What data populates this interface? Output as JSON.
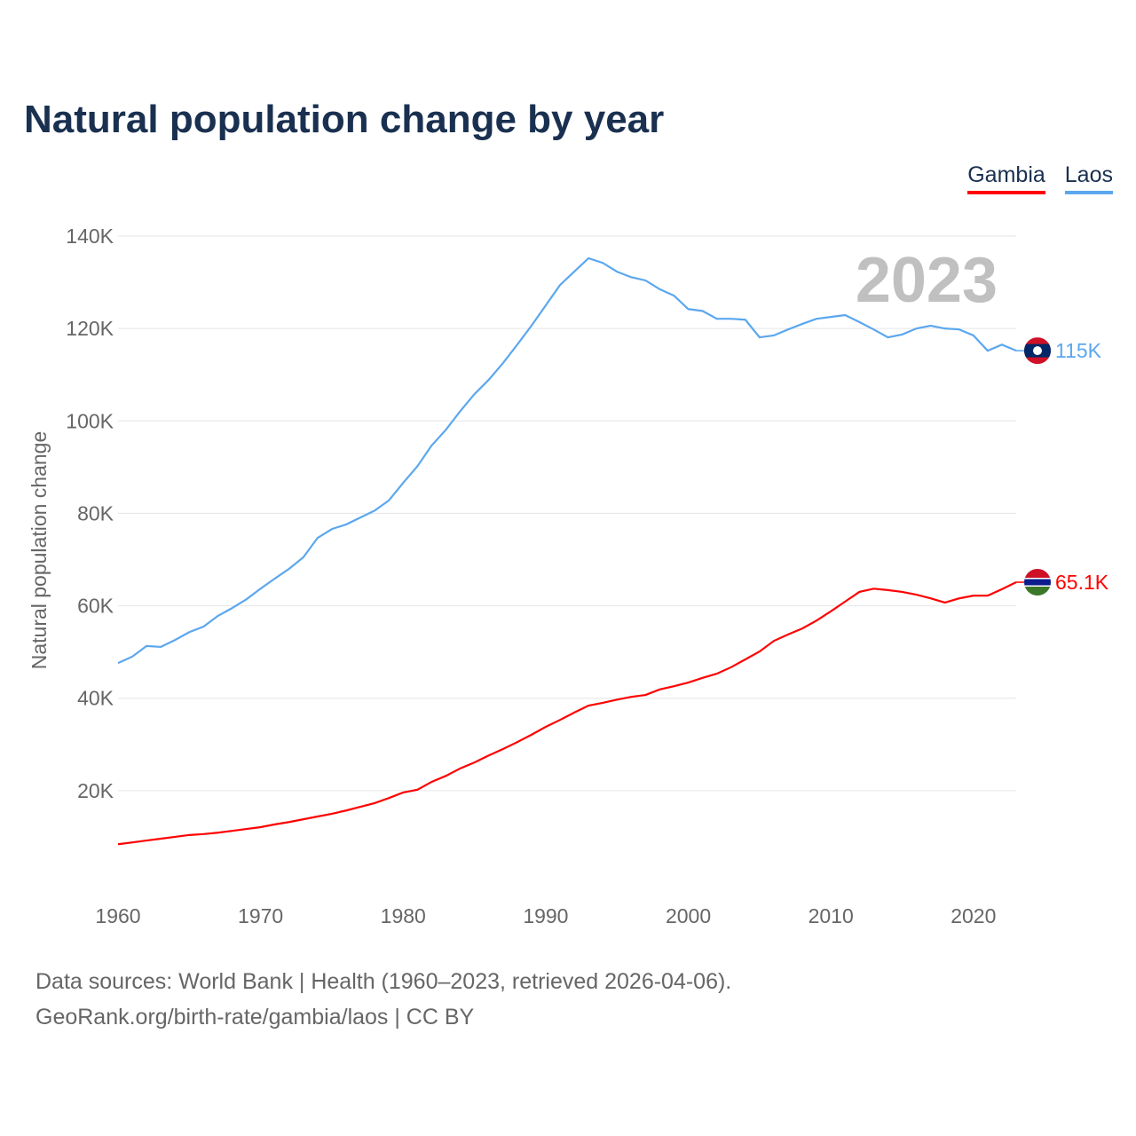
{
  "chart_data": {
    "type": "line",
    "title": "Natural population change by year",
    "ylabel": "Natural population change",
    "xlabel": "",
    "year_label": "2023",
    "xlim": [
      1960,
      2023
    ],
    "ylim": [
      0,
      140000
    ],
    "x_ticks": [
      1960,
      1970,
      1980,
      1990,
      2000,
      2010,
      2020
    ],
    "y_ticks": [
      20000,
      40000,
      60000,
      80000,
      100000,
      120000,
      140000
    ],
    "y_tick_labels": [
      "20K",
      "40K",
      "60K",
      "80K",
      "100K",
      "120K",
      "140K"
    ],
    "x": [
      1960,
      1961,
      1962,
      1963,
      1964,
      1965,
      1966,
      1967,
      1968,
      1969,
      1970,
      1971,
      1972,
      1973,
      1974,
      1975,
      1976,
      1977,
      1978,
      1979,
      1980,
      1981,
      1982,
      1983,
      1984,
      1985,
      1986,
      1987,
      1988,
      1989,
      1990,
      1991,
      1992,
      1993,
      1994,
      1995,
      1996,
      1997,
      1998,
      1999,
      2000,
      2001,
      2002,
      2003,
      2004,
      2005,
      2006,
      2007,
      2008,
      2009,
      2010,
      2011,
      2012,
      2013,
      2014,
      2015,
      2016,
      2017,
      2018,
      2019,
      2020,
      2021,
      2022,
      2023
    ],
    "series": [
      {
        "name": "Gambia",
        "color": "#ff0000",
        "end_label": "65.1K",
        "values": [
          8400,
          8800,
          9200,
          9600,
          10000,
          10400,
          10600,
          10900,
          11300,
          11700,
          12100,
          12700,
          13200,
          13800,
          14400,
          15000,
          15700,
          16500,
          17300,
          18400,
          19600,
          20200,
          21900,
          23200,
          24800,
          26100,
          27600,
          29000,
          30500,
          32100,
          33800,
          35300,
          36900,
          38400,
          39000,
          39700,
          40300,
          40700,
          41900,
          42600,
          43400,
          44400,
          45300,
          46700,
          48400,
          50100,
          52400,
          53800,
          55100,
          56800,
          58800,
          60900,
          63000,
          63700,
          63400,
          63000,
          62400,
          61600,
          60700,
          61600,
          62200,
          62200,
          63600,
          65100
        ]
      },
      {
        "name": "Laos",
        "color": "#5ba7ef",
        "end_label": "115K",
        "values": [
          47600,
          49000,
          51300,
          51100,
          52600,
          54300,
          55500,
          57800,
          59500,
          61400,
          63700,
          65900,
          68000,
          70500,
          74700,
          76600,
          77600,
          79100,
          80600,
          82800,
          86600,
          90200,
          94700,
          98100,
          102100,
          105800,
          108900,
          112500,
          116500,
          120600,
          125000,
          129400,
          132300,
          135200,
          134200,
          132300,
          131100,
          130400,
          128500,
          127100,
          124200,
          123800,
          122100,
          122100,
          121900,
          118100,
          118500,
          119800,
          121000,
          122100,
          122500,
          122900,
          121400,
          119800,
          118100,
          118700,
          120000,
          120600,
          120000,
          119800,
          118500,
          115200,
          116500,
          115200
        ]
      }
    ],
    "legend_position": "top-right"
  },
  "footer": {
    "line1": "Data sources: World Bank | Health (1960–2023, retrieved 2026-04-06).",
    "line2": "GeoRank.org/birth-rate/gambia/laos | CC BY"
  }
}
